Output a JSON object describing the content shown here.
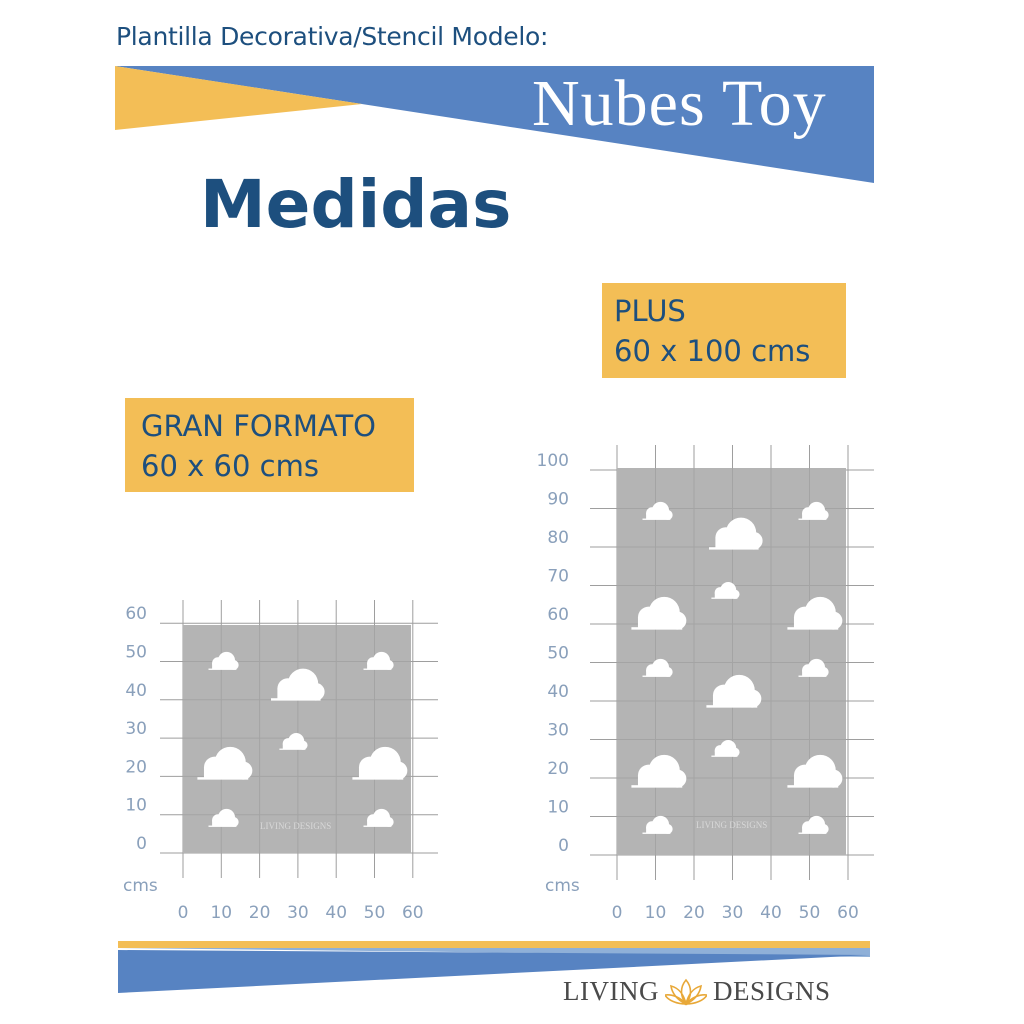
{
  "header": {
    "subtitle": "Plantilla Decorativa/Stencil Modelo:",
    "title": "Nubes Toy"
  },
  "heading": "Medidas",
  "sizes": {
    "gran": {
      "name": "GRAN FORMATO",
      "dims": "60 x 60 cms"
    },
    "plus": {
      "name": "PLUS",
      "dims": "60 x 100 cms"
    }
  },
  "diagrams": {
    "gran": {
      "unit": "cms",
      "x_ticks": [
        "0",
        "10",
        "20",
        "30",
        "40",
        "50",
        "60"
      ],
      "y_ticks": [
        "0",
        "10",
        "20",
        "30",
        "40",
        "50",
        "60"
      ],
      "watermark": "LIVING DESIGNS"
    },
    "plus": {
      "unit": "cms",
      "x_ticks": [
        "0",
        "10",
        "20",
        "30",
        "40",
        "50",
        "60"
      ],
      "y_ticks": [
        "0",
        "10",
        "20",
        "30",
        "40",
        "50",
        "60",
        "70",
        "80",
        "90",
        "100"
      ],
      "watermark": "LIVING DESIGNS"
    }
  },
  "footer": {
    "logo_left": "LIVING",
    "logo_right": "DESIGNS"
  },
  "colors": {
    "blue": "#5783c2",
    "yellow": "#f3be56",
    "navy": "#1d4f7e",
    "stencil_gray": "#b4b4b4",
    "grid": "#9e9e9e"
  }
}
